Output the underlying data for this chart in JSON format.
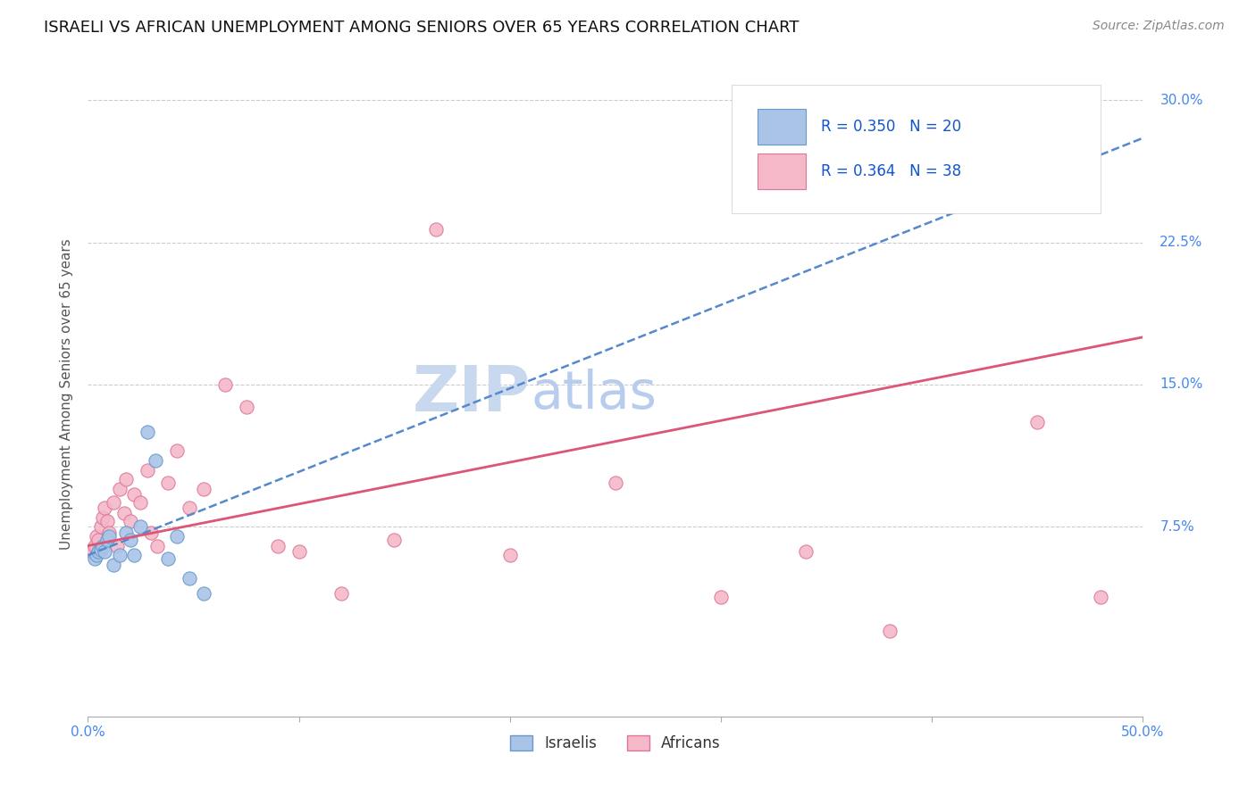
{
  "title": "ISRAELI VS AFRICAN UNEMPLOYMENT AMONG SENIORS OVER 65 YEARS CORRELATION CHART",
  "source": "Source: ZipAtlas.com",
  "ylabel_label": "Unemployment Among Seniors over 65 years",
  "x_min": 0.0,
  "x_max": 0.5,
  "y_min": -0.025,
  "y_max": 0.315,
  "x_ticks": [
    0.0,
    0.1,
    0.2,
    0.3,
    0.4,
    0.5
  ],
  "y_ticks": [
    0.0,
    0.075,
    0.15,
    0.225,
    0.3
  ],
  "watermark_zip": "ZIP",
  "watermark_atlas": "atlas",
  "israelis_x": [
    0.003,
    0.004,
    0.005,
    0.006,
    0.007,
    0.008,
    0.009,
    0.01,
    0.012,
    0.015,
    0.018,
    0.02,
    0.022,
    0.025,
    0.028,
    0.032,
    0.038,
    0.042,
    0.048,
    0.055
  ],
  "israelis_y": [
    0.058,
    0.06,
    0.062,
    0.063,
    0.065,
    0.062,
    0.068,
    0.07,
    0.055,
    0.06,
    0.072,
    0.068,
    0.06,
    0.075,
    0.125,
    0.11,
    0.058,
    0.07,
    0.048,
    0.04
  ],
  "africans_x": [
    0.002,
    0.003,
    0.004,
    0.005,
    0.006,
    0.007,
    0.008,
    0.009,
    0.01,
    0.012,
    0.014,
    0.015,
    0.017,
    0.018,
    0.02,
    0.022,
    0.025,
    0.028,
    0.03,
    0.033,
    0.038,
    0.042,
    0.048,
    0.055,
    0.065,
    0.075,
    0.09,
    0.1,
    0.12,
    0.145,
    0.165,
    0.2,
    0.25,
    0.3,
    0.34,
    0.38,
    0.45,
    0.48
  ],
  "africans_y": [
    0.062,
    0.065,
    0.07,
    0.068,
    0.075,
    0.08,
    0.085,
    0.078,
    0.072,
    0.088,
    0.065,
    0.095,
    0.082,
    0.1,
    0.078,
    0.092,
    0.088,
    0.105,
    0.072,
    0.065,
    0.098,
    0.115,
    0.085,
    0.095,
    0.15,
    0.138,
    0.065,
    0.062,
    0.04,
    0.068,
    0.232,
    0.06,
    0.098,
    0.038,
    0.062,
    0.02,
    0.13,
    0.038
  ],
  "israeli_color": "#aac4e8",
  "african_color": "#f4b8c8",
  "israeli_edge_color": "#6699cc",
  "african_edge_color": "#dd7799",
  "trend_israeli_color": "#5588cc",
  "trend_african_color": "#dd5577",
  "grid_color": "#cccccc",
  "background_color": "#ffffff",
  "tick_color": "#4488ee",
  "title_fontsize": 13,
  "source_fontsize": 10,
  "ylabel_fontsize": 11,
  "tick_fontsize": 11,
  "legend_fontsize": 12,
  "watermark_fontsize_zip": 52,
  "watermark_fontsize_atlas": 42,
  "watermark_color_zip": "#c8d8ee",
  "watermark_color_atlas": "#b8ccee",
  "legend_label_israelis": "Israelis",
  "legend_label_africans": "Africans",
  "dot_size": 120
}
